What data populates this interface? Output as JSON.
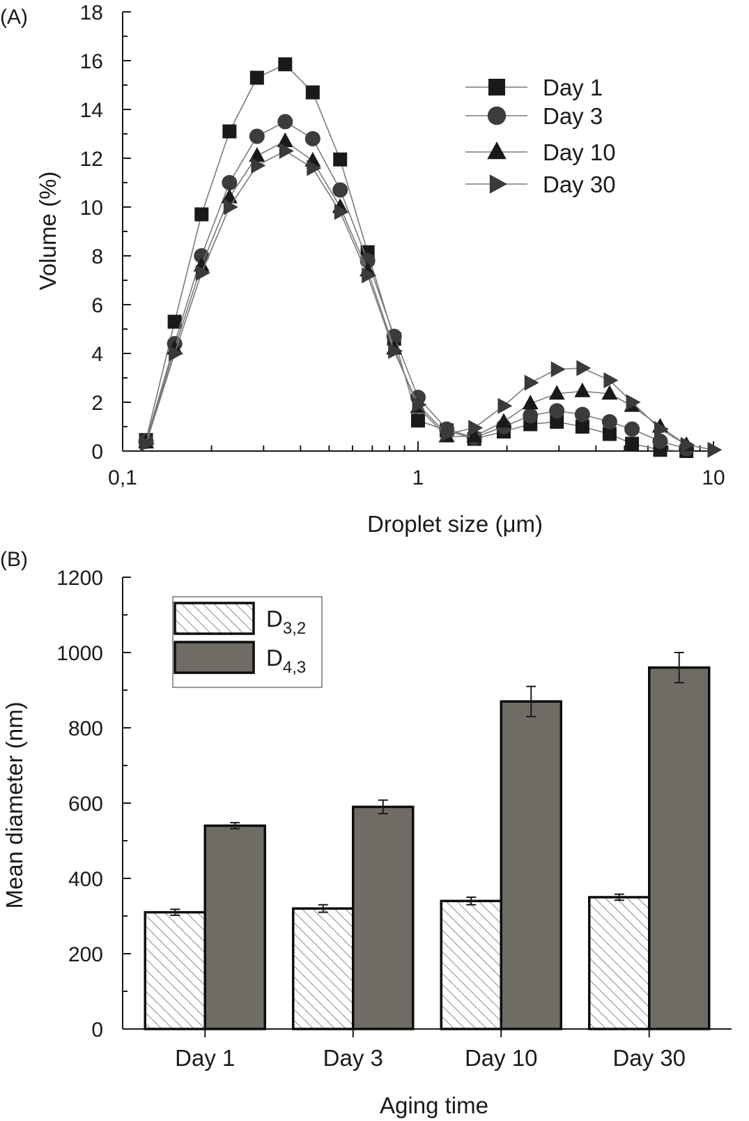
{
  "chart_data": [
    {
      "panel": "(A)",
      "type": "line",
      "xlabel": "Droplet size (μm)",
      "ylabel": "Volume (%)",
      "x_scale": "log",
      "xlim": [
        0.1,
        10
      ],
      "ylim": [
        0,
        18
      ],
      "x_ticks": [
        0.1,
        1,
        10
      ],
      "x_tick_labels": [
        "0,1",
        "1",
        "10"
      ],
      "y_ticks": [
        0,
        2,
        4,
        6,
        8,
        10,
        12,
        14,
        16,
        18
      ],
      "y_tick_labels": [
        "0",
        "2",
        "4",
        "6",
        "8",
        "10",
        "12",
        "14",
        "16",
        "18"
      ],
      "legend_position": "top-right",
      "x": [
        0.12,
        0.15,
        0.185,
        0.23,
        0.285,
        0.355,
        0.44,
        0.545,
        0.675,
        0.83,
        1.0,
        1.25,
        1.55,
        1.95,
        2.4,
        2.95,
        3.6,
        4.45,
        5.3,
        6.6,
        8.1,
        10.0
      ],
      "series": [
        {
          "name": "Day 1",
          "marker": "square",
          "color": "#1a1a1a",
          "values": [
            0.45,
            5.3,
            9.7,
            13.1,
            15.3,
            15.85,
            14.7,
            11.95,
            8.15,
            4.6,
            1.25,
            0.85,
            0.5,
            0.8,
            1.1,
            1.2,
            1.0,
            0.7,
            0.3,
            0.05,
            0.0,
            null
          ]
        },
        {
          "name": "Day 3",
          "marker": "circle",
          "color": "#3c3c3c",
          "values": [
            0.4,
            4.4,
            8.0,
            11.0,
            12.9,
            13.5,
            12.8,
            10.7,
            7.8,
            4.7,
            2.2,
            0.9,
            0.55,
            1.0,
            1.45,
            1.65,
            1.5,
            1.2,
            0.9,
            0.4,
            0.1,
            null
          ]
        },
        {
          "name": "Day 10",
          "marker": "triangle-up",
          "color": "#1a1a1a",
          "values": [
            0.35,
            4.2,
            7.6,
            10.4,
            12.1,
            12.7,
            11.9,
            10.0,
            7.4,
            4.2,
            1.8,
            0.6,
            0.6,
            1.2,
            1.95,
            2.35,
            2.45,
            2.35,
            1.85,
            1.0,
            0.25,
            null
          ]
        },
        {
          "name": "Day 30",
          "marker": "triangle-right",
          "color": "#3a3a3a",
          "values": [
            0.3,
            4.0,
            7.3,
            10.0,
            11.7,
            12.3,
            11.6,
            9.8,
            7.2,
            4.1,
            1.9,
            0.7,
            0.95,
            1.85,
            2.8,
            3.35,
            3.4,
            2.9,
            2.0,
            0.9,
            0.25,
            0.05
          ]
        }
      ]
    },
    {
      "panel": "(B)",
      "type": "bar",
      "xlabel": "Aging time",
      "ylabel": "Mean diameter (nm)",
      "ylim": [
        0,
        1200
      ],
      "y_ticks": [
        0,
        200,
        400,
        600,
        800,
        1000,
        1200
      ],
      "y_tick_labels": [
        "0",
        "200",
        "400",
        "600",
        "800",
        "1000",
        "1200"
      ],
      "legend_position": "top-left",
      "categories": [
        "Day 1",
        "Day 3",
        "Day 10",
        "Day 30"
      ],
      "series": [
        {
          "name": "D3,2",
          "name_base": "D",
          "name_sub": "3,2",
          "fill": "hatched",
          "color": "#ffffff",
          "values": [
            310,
            320,
            340,
            350
          ],
          "errors": [
            8,
            10,
            10,
            8
          ]
        },
        {
          "name": "D4,3",
          "name_base": "D",
          "name_sub": "4,3",
          "fill": "solid",
          "color": "#6f6c66",
          "values": [
            540,
            590,
            870,
            960
          ],
          "errors": [
            8,
            18,
            40,
            40
          ]
        }
      ]
    }
  ]
}
